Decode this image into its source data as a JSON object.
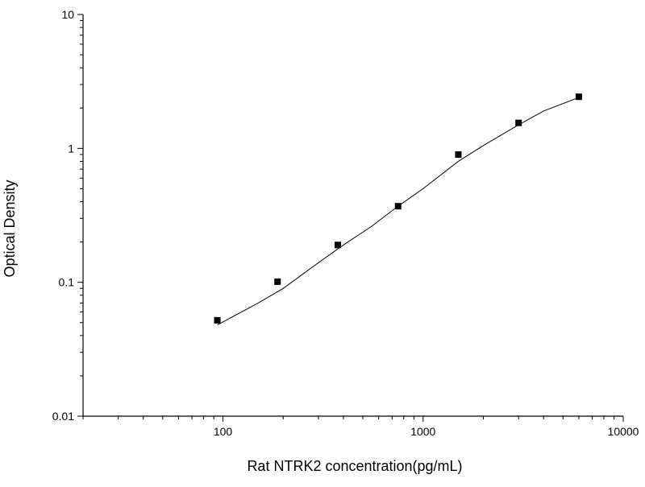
{
  "chart_data": {
    "type": "scatter",
    "title": "",
    "xlabel": "Rat NTRK2 concentration(pg/mL)",
    "ylabel": "Optical Density",
    "x_scale": "log",
    "y_scale": "log",
    "xlim": [
      20,
      10000
    ],
    "ylim": [
      0.01,
      10
    ],
    "x_major_ticks": [
      100,
      1000,
      10000
    ],
    "x_tick_labels": [
      "100",
      "1000",
      "10000"
    ],
    "y_major_ticks": [
      0.01,
      0.1,
      1,
      10
    ],
    "y_tick_labels": [
      "0.01",
      "0.1",
      "1",
      "10"
    ],
    "grid": false,
    "legend": "none",
    "marker": "square",
    "series": [
      {
        "points": [
          {
            "x": 93.75,
            "y": 0.052
          },
          {
            "x": 187.5,
            "y": 0.101
          },
          {
            "x": 375,
            "y": 0.19
          },
          {
            "x": 750,
            "y": 0.37
          },
          {
            "x": 1500,
            "y": 0.9
          },
          {
            "x": 3000,
            "y": 1.55
          },
          {
            "x": 6000,
            "y": 2.43
          }
        ]
      }
    ],
    "fit_curve": [
      {
        "x": 93.75,
        "y": 0.048
      },
      {
        "x": 150,
        "y": 0.07
      },
      {
        "x": 200,
        "y": 0.09
      },
      {
        "x": 300,
        "y": 0.14
      },
      {
        "x": 400,
        "y": 0.19
      },
      {
        "x": 550,
        "y": 0.26
      },
      {
        "x": 750,
        "y": 0.37
      },
      {
        "x": 1000,
        "y": 0.5
      },
      {
        "x": 1500,
        "y": 0.8
      },
      {
        "x": 2000,
        "y": 1.05
      },
      {
        "x": 3000,
        "y": 1.5
      },
      {
        "x": 4000,
        "y": 1.9
      },
      {
        "x": 6000,
        "y": 2.4
      }
    ],
    "colors": {
      "marker": "#000000",
      "curve": "#000000",
      "axis": "#000000",
      "background": "#ffffff"
    }
  }
}
